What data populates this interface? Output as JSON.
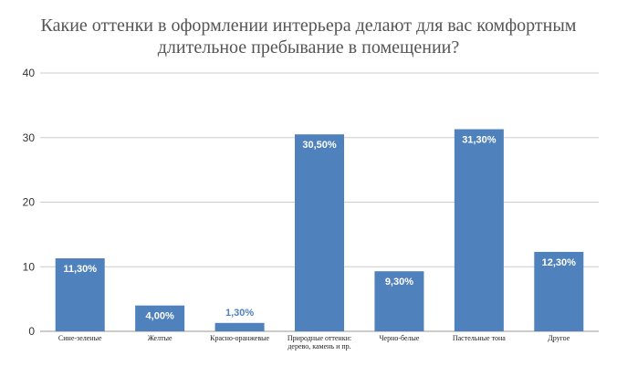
{
  "chart_data": {
    "type": "bar",
    "title_lines": [
      "Какие оттенки в оформлении интерьера делают для вас комфортным",
      "длительное пребывание в помещении?"
    ],
    "categories": [
      [
        "Сине-зеленые"
      ],
      [
        "Желтые"
      ],
      [
        "Красно-оранжевые"
      ],
      [
        "Природные оттенки:",
        "дерево, камень и пр."
      ],
      [
        "Черно-белые"
      ],
      [
        "Пастельные тона"
      ],
      [
        "Другое"
      ]
    ],
    "values": [
      11.3,
      4.0,
      1.3,
      30.5,
      9.3,
      31.3,
      12.3
    ],
    "data_labels": [
      "11,30%",
      "4,00%",
      "1,30%",
      "30,50%",
      "9,30%",
      "31,30%",
      "12,30%"
    ],
    "ylim": [
      0,
      40
    ],
    "yticks": [
      0,
      10,
      20,
      30,
      40
    ],
    "grid": true,
    "bar_color": "#4f81bd",
    "label_inside_color": "#ffffff",
    "label_outside_color": "#4f81bd"
  }
}
